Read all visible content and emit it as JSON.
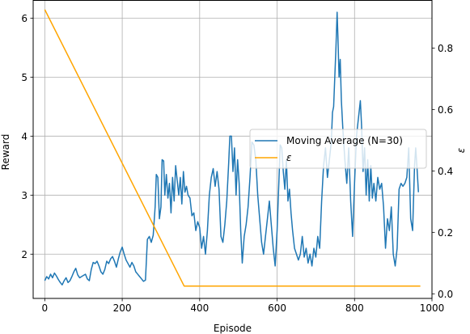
{
  "chart_data": {
    "type": "line",
    "title": "",
    "xlabel": "Episode",
    "ylabel_left": "Reward",
    "ylabel_right": "ε",
    "xlim": [
      -30,
      1000
    ],
    "ylim_left": [
      1.25,
      6.3
    ],
    "ylim_right": [
      -0.015,
      0.955
    ],
    "grid": true,
    "legend_placement": "center-right",
    "x_ticks": [
      0,
      200,
      400,
      600,
      800,
      1000
    ],
    "y_left_ticks": [
      2,
      3,
      4,
      5,
      6
    ],
    "y_right_ticks": [
      0.0,
      0.2,
      0.4,
      0.6,
      0.8
    ],
    "series": [
      {
        "name": "Moving Average (N=30)",
        "axis": "left",
        "color": "#1f77b4",
        "points": [
          [
            0,
            1.55
          ],
          [
            5,
            1.62
          ],
          [
            10,
            1.58
          ],
          [
            15,
            1.66
          ],
          [
            20,
            1.6
          ],
          [
            25,
            1.68
          ],
          [
            30,
            1.63
          ],
          [
            35,
            1.57
          ],
          [
            40,
            1.52
          ],
          [
            45,
            1.48
          ],
          [
            50,
            1.55
          ],
          [
            55,
            1.6
          ],
          [
            60,
            1.52
          ],
          [
            65,
            1.55
          ],
          [
            70,
            1.62
          ],
          [
            75,
            1.7
          ],
          [
            80,
            1.76
          ],
          [
            85,
            1.65
          ],
          [
            90,
            1.6
          ],
          [
            95,
            1.62
          ],
          [
            100,
            1.64
          ],
          [
            105,
            1.66
          ],
          [
            110,
            1.58
          ],
          [
            115,
            1.55
          ],
          [
            120,
            1.74
          ],
          [
            125,
            1.86
          ],
          [
            130,
            1.84
          ],
          [
            135,
            1.88
          ],
          [
            140,
            1.8
          ],
          [
            145,
            1.7
          ],
          [
            150,
            1.66
          ],
          [
            155,
            1.74
          ],
          [
            160,
            1.88
          ],
          [
            165,
            1.84
          ],
          [
            170,
            1.92
          ],
          [
            175,
            1.96
          ],
          [
            180,
            1.88
          ],
          [
            185,
            1.78
          ],
          [
            190,
            1.92
          ],
          [
            195,
            2.04
          ],
          [
            200,
            2.12
          ],
          [
            205,
            2.0
          ],
          [
            210,
            1.9
          ],
          [
            215,
            1.84
          ],
          [
            220,
            1.78
          ],
          [
            225,
            1.86
          ],
          [
            230,
            1.8
          ],
          [
            235,
            1.7
          ],
          [
            240,
            1.66
          ],
          [
            245,
            1.62
          ],
          [
            250,
            1.58
          ],
          [
            255,
            1.54
          ],
          [
            260,
            1.56
          ],
          [
            265,
            2.25
          ],
          [
            270,
            2.3
          ],
          [
            275,
            2.2
          ],
          [
            280,
            2.32
          ],
          [
            285,
            2.8
          ],
          [
            288,
            3.35
          ],
          [
            292,
            3.3
          ],
          [
            296,
            2.6
          ],
          [
            300,
            2.8
          ],
          [
            303,
            3.6
          ],
          [
            307,
            3.58
          ],
          [
            310,
            3.0
          ],
          [
            314,
            3.35
          ],
          [
            318,
            2.95
          ],
          [
            322,
            3.2
          ],
          [
            326,
            2.7
          ],
          [
            330,
            3.3
          ],
          [
            334,
            2.9
          ],
          [
            338,
            3.5
          ],
          [
            342,
            3.25
          ],
          [
            346,
            3.0
          ],
          [
            350,
            3.3
          ],
          [
            354,
            2.85
          ],
          [
            358,
            3.4
          ],
          [
            362,
            3.05
          ],
          [
            366,
            3.15
          ],
          [
            370,
            3.0
          ],
          [
            375,
            2.95
          ],
          [
            380,
            2.65
          ],
          [
            385,
            2.7
          ],
          [
            390,
            2.4
          ],
          [
            395,
            2.55
          ],
          [
            400,
            2.45
          ],
          [
            405,
            2.1
          ],
          [
            410,
            2.3
          ],
          [
            415,
            2.0
          ],
          [
            420,
            2.4
          ],
          [
            425,
            3.0
          ],
          [
            430,
            3.3
          ],
          [
            435,
            3.45
          ],
          [
            440,
            3.15
          ],
          [
            445,
            3.4
          ],
          [
            450,
            3.1
          ],
          [
            455,
            2.3
          ],
          [
            460,
            2.2
          ],
          [
            465,
            2.5
          ],
          [
            470,
            2.9
          ],
          [
            475,
            3.55
          ],
          [
            478,
            4.0
          ],
          [
            482,
            4.0
          ],
          [
            486,
            3.4
          ],
          [
            490,
            3.8
          ],
          [
            494,
            3.0
          ],
          [
            498,
            3.6
          ],
          [
            502,
            3.2
          ],
          [
            506,
            2.4
          ],
          [
            510,
            1.85
          ],
          [
            515,
            2.3
          ],
          [
            520,
            2.5
          ],
          [
            525,
            2.8
          ],
          [
            530,
            3.3
          ],
          [
            535,
            3.9
          ],
          [
            540,
            3.85
          ],
          [
            545,
            3.6
          ],
          [
            550,
            3.0
          ],
          [
            555,
            2.6
          ],
          [
            560,
            2.2
          ],
          [
            565,
            2.0
          ],
          [
            570,
            2.3
          ],
          [
            575,
            2.6
          ],
          [
            580,
            2.9
          ],
          [
            585,
            2.5
          ],
          [
            590,
            2.1
          ],
          [
            595,
            1.8
          ],
          [
            600,
            2.4
          ],
          [
            605,
            3.3
          ],
          [
            608,
            3.85
          ],
          [
            612,
            3.8
          ],
          [
            616,
            3.4
          ],
          [
            620,
            3.1
          ],
          [
            624,
            3.6
          ],
          [
            628,
            2.9
          ],
          [
            632,
            3.1
          ],
          [
            636,
            2.7
          ],
          [
            640,
            2.4
          ],
          [
            645,
            2.1
          ],
          [
            650,
            2.0
          ],
          [
            655,
            1.9
          ],
          [
            660,
            2.0
          ],
          [
            665,
            2.3
          ],
          [
            670,
            1.95
          ],
          [
            675,
            2.1
          ],
          [
            680,
            1.85
          ],
          [
            685,
            2.0
          ],
          [
            690,
            1.8
          ],
          [
            695,
            2.1
          ],
          [
            700,
            1.95
          ],
          [
            705,
            2.3
          ],
          [
            710,
            2.1
          ],
          [
            715,
            2.9
          ],
          [
            720,
            3.5
          ],
          [
            725,
            3.8
          ],
          [
            730,
            3.3
          ],
          [
            735,
            3.6
          ],
          [
            740,
            3.9
          ],
          [
            743,
            4.4
          ],
          [
            746,
            4.5
          ],
          [
            749,
            5.0
          ],
          [
            752,
            5.5
          ],
          [
            755,
            6.1
          ],
          [
            757,
            5.7
          ],
          [
            760,
            5.0
          ],
          [
            763,
            5.3
          ],
          [
            766,
            4.6
          ],
          [
            770,
            4.1
          ],
          [
            775,
            3.6
          ],
          [
            780,
            3.2
          ],
          [
            785,
            3.8
          ],
          [
            790,
            2.9
          ],
          [
            795,
            2.3
          ],
          [
            800,
            3.2
          ],
          [
            805,
            4.0
          ],
          [
            810,
            4.3
          ],
          [
            815,
            4.6
          ],
          [
            818,
            4.2
          ],
          [
            822,
            3.4
          ],
          [
            826,
            3.8
          ],
          [
            830,
            3.0
          ],
          [
            834,
            3.6
          ],
          [
            838,
            2.9
          ],
          [
            842,
            3.5
          ],
          [
            846,
            2.95
          ],
          [
            850,
            3.2
          ],
          [
            855,
            2.9
          ],
          [
            860,
            3.3
          ],
          [
            865,
            3.1
          ],
          [
            870,
            3.2
          ],
          [
            875,
            2.8
          ],
          [
            880,
            2.1
          ],
          [
            885,
            2.6
          ],
          [
            890,
            2.4
          ],
          [
            895,
            2.8
          ],
          [
            900,
            2.0
          ],
          [
            905,
            1.8
          ],
          [
            910,
            2.1
          ],
          [
            915,
            3.1
          ],
          [
            920,
            3.2
          ],
          [
            925,
            3.15
          ],
          [
            930,
            3.2
          ],
          [
            935,
            3.3
          ],
          [
            940,
            3.8
          ],
          [
            945,
            2.6
          ],
          [
            950,
            2.4
          ],
          [
            955,
            3.5
          ],
          [
            958,
            3.8
          ],
          [
            961,
            3.5
          ],
          [
            965,
            3.05
          ]
        ]
      },
      {
        "name": "ε",
        "axis": "right",
        "color": "#ffa500",
        "points": [
          [
            0,
            0.925
          ],
          [
            360,
            0.025
          ],
          [
            970,
            0.025
          ]
        ]
      }
    ]
  }
}
